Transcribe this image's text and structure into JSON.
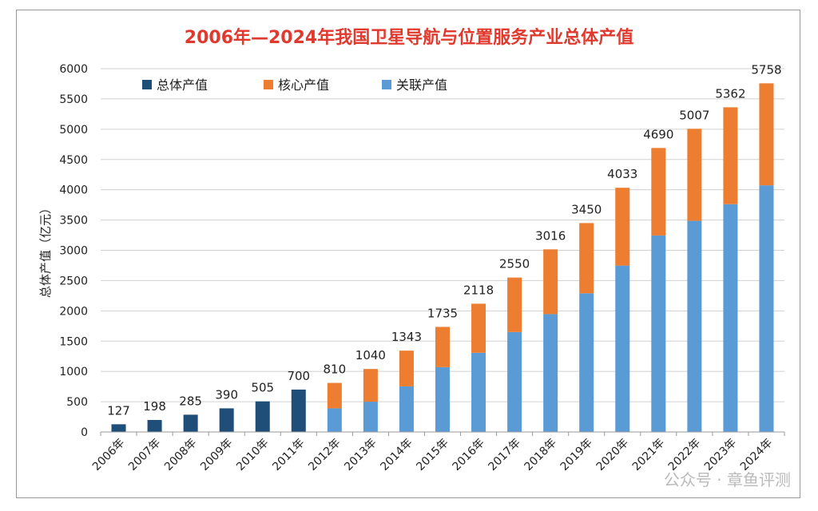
{
  "chart_data": {
    "type": "bar",
    "stacked": true,
    "title": "2006年—2024年我国卫星导航与位置服务产业总体产值",
    "ylabel": "总体产值（亿元）",
    "xlabel": "",
    "ylim": [
      0,
      6000
    ],
    "yticks": [
      0,
      500,
      1000,
      1500,
      2000,
      2500,
      3000,
      3500,
      4000,
      4500,
      5000,
      5500,
      6000
    ],
    "grid": true,
    "legend_position": "top-left",
    "categories": [
      "2006年",
      "2007年",
      "2008年",
      "2009年",
      "2010年",
      "2011年",
      "2012年",
      "2013年",
      "2014年",
      "2015年",
      "2016年",
      "2017年",
      "2018年",
      "2019年",
      "2020年",
      "2021年",
      "2022年",
      "2023年",
      "2024年"
    ],
    "series": [
      {
        "name": "总体产值",
        "color": "#1f4e79",
        "values": [
          127,
          198,
          285,
          390,
          505,
          700,
          null,
          null,
          null,
          null,
          null,
          null,
          null,
          null,
          null,
          null,
          null,
          null,
          null
        ]
      },
      {
        "name": "核心产值",
        "color": "#ed7d31",
        "values": [
          null,
          null,
          null,
          null,
          null,
          null,
          420,
          540,
          590,
          665,
          810,
          900,
          1070,
          1160,
          1285,
          1445,
          1520,
          1600,
          1685
        ]
      },
      {
        "name": "关联产值",
        "color": "#5b9bd5",
        "values": [
          null,
          null,
          null,
          null,
          null,
          null,
          390,
          500,
          753,
          1070,
          1308,
          1650,
          1946,
          2290,
          2748,
          3245,
          3487,
          3762,
          4073
        ]
      }
    ],
    "total_labels": [
      "127",
      "198",
      "285",
      "390",
      "505",
      "700",
      "810",
      "1040",
      "1343",
      "1735",
      "2118",
      "2550",
      "3016",
      "3450",
      "4033",
      "4690",
      "5007",
      "5362",
      "5758"
    ],
    "title_color": "#e03a2f"
  },
  "watermark": "公众号 · 章鱼评测"
}
